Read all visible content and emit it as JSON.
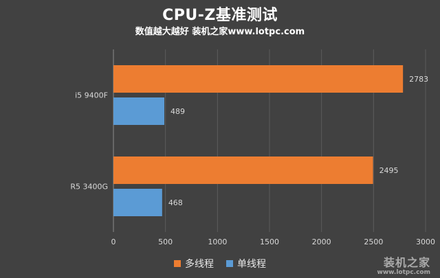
{
  "chart_data": {
    "type": "bar",
    "orientation": "horizontal",
    "title": "CPU-Z基准测试",
    "subtitle": "数值越大越好 装机之家www.lotpc.com",
    "categories": [
      "i5 9400F",
      "R5 3400G"
    ],
    "series": [
      {
        "name": "多线程",
        "color": "#ed7d31",
        "values": [
          2783,
          2495
        ]
      },
      {
        "name": "单线程",
        "color": "#5b9bd5",
        "values": [
          489,
          468
        ]
      }
    ],
    "xlim": [
      0,
      3000
    ],
    "xticks": [
      "0",
      "500",
      "1000",
      "1500",
      "2000",
      "2500",
      "3000"
    ],
    "grid": true,
    "legend_position": "bottom"
  },
  "watermark": {
    "main": "装机之家",
    "url": "www.lotpc.com"
  }
}
